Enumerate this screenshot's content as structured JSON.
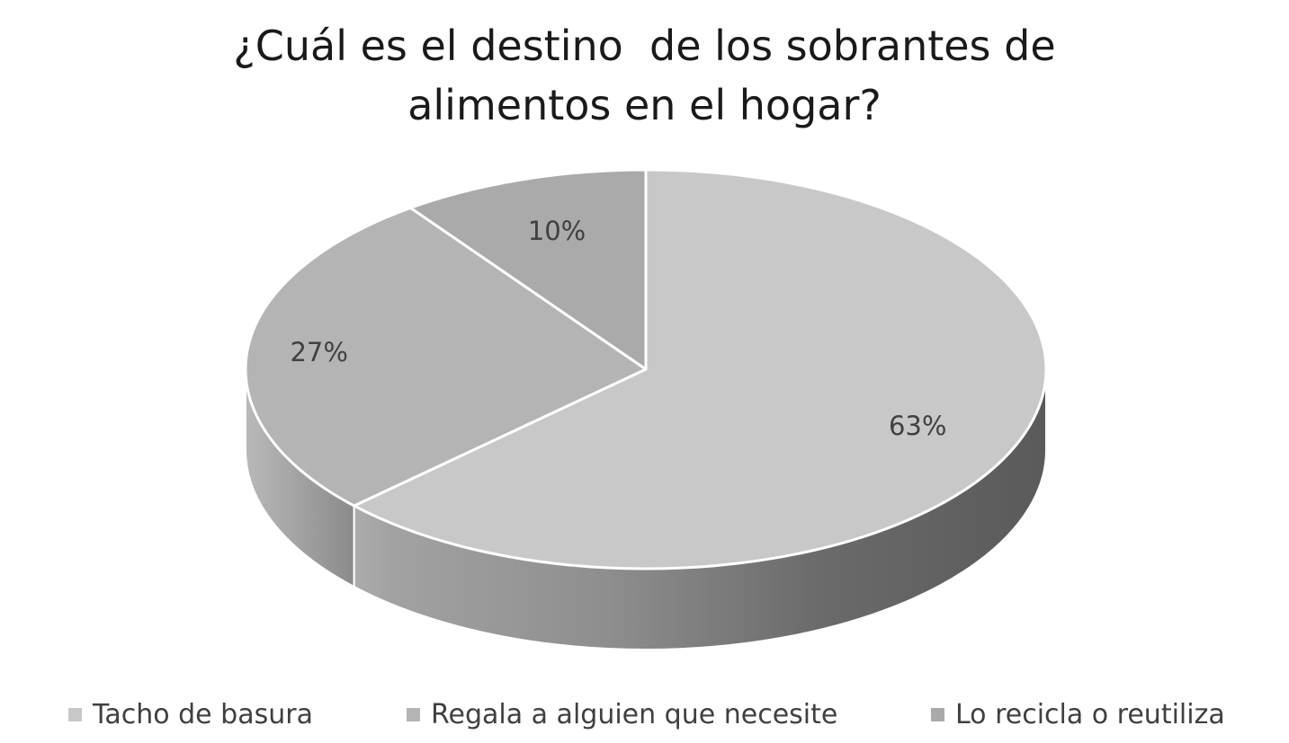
{
  "chart_data": {
    "type": "pie",
    "title_lines": [
      "¿Cuál es el destino  de los sobrantes de",
      "alimentos en el hogar?"
    ],
    "categories": [
      "Tacho de basura",
      "Regala a alguien que necesite",
      "Lo recicla o reutiliza"
    ],
    "values": [
      63,
      27,
      10
    ],
    "labels": [
      "63%",
      "27%",
      "10%"
    ],
    "colors": [
      "#c8c8c8",
      "#b4b4b4",
      "#aaaaaa"
    ],
    "legend_position": "bottom",
    "style": "3d"
  }
}
